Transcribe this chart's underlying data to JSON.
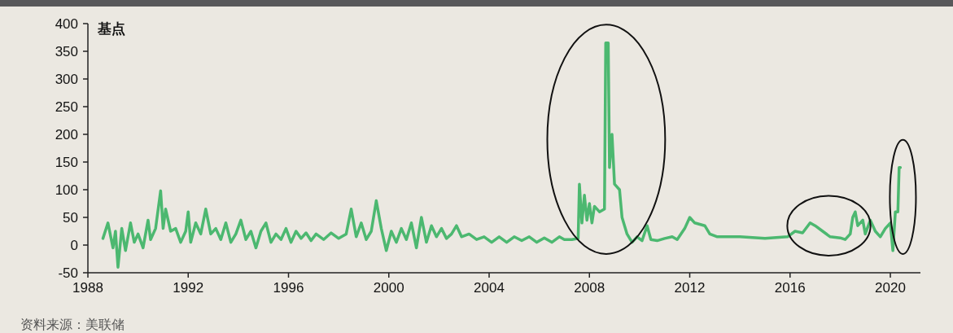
{
  "chart_data": {
    "type": "line",
    "ylabel": "基点",
    "annotations": [
      "资料来源：美联储"
    ],
    "xlim": [
      1988,
      2021.2
    ],
    "xticks": [
      1988,
      1992,
      1996,
      2000,
      2004,
      2008,
      2012,
      2016,
      2020
    ],
    "ylim": [
      -50,
      400
    ],
    "yticks": [
      -50,
      0,
      50,
      100,
      150,
      200,
      250,
      300,
      350,
      400
    ],
    "grid": false,
    "line_style": "solid",
    "marker": "none",
    "series": [
      {
        "color": "#4cb870",
        "x": [
          1988.6,
          1988.8,
          1989.0,
          1989.1,
          1989.2,
          1989.35,
          1989.5,
          1989.7,
          1989.85,
          1990.0,
          1990.2,
          1990.4,
          1990.5,
          1990.7,
          1990.9,
          1991.0,
          1991.1,
          1991.3,
          1991.5,
          1991.7,
          1991.9,
          1992.0,
          1992.1,
          1992.3,
          1992.5,
          1992.7,
          1992.9,
          1993.1,
          1993.3,
          1993.5,
          1993.7,
          1993.9,
          1994.1,
          1994.3,
          1994.5,
          1994.7,
          1994.9,
          1995.1,
          1995.3,
          1995.5,
          1995.7,
          1995.9,
          1996.1,
          1996.3,
          1996.5,
          1996.7,
          1996.9,
          1997.1,
          1997.4,
          1997.7,
          1998.0,
          1998.3,
          1998.5,
          1998.7,
          1998.9,
          1999.1,
          1999.3,
          1999.5,
          1999.7,
          1999.9,
          2000.1,
          2000.3,
          2000.5,
          2000.7,
          2000.9,
          2001.1,
          2001.3,
          2001.5,
          2001.7,
          2001.9,
          2002.1,
          2002.3,
          2002.5,
          2002.7,
          2002.9,
          2003.2,
          2003.5,
          2003.8,
          2004.1,
          2004.4,
          2004.7,
          2005.0,
          2005.3,
          2005.6,
          2005.9,
          2006.2,
          2006.5,
          2006.8,
          2007.0,
          2007.3,
          2007.55,
          2007.6,
          2007.7,
          2007.8,
          2007.9,
          2008.0,
          2008.1,
          2008.2,
          2008.4,
          2008.6,
          2008.65,
          2008.75,
          2008.8,
          2008.9,
          2009.0,
          2009.2,
          2009.3,
          2009.5,
          2009.7,
          2009.9,
          2010.1,
          2010.3,
          2010.45,
          2010.7,
          2011.0,
          2011.3,
          2011.5,
          2011.8,
          2012.0,
          2012.2,
          2012.6,
          2012.8,
          2013.1,
          2014.0,
          2015.0,
          2015.9,
          2016.2,
          2016.5,
          2016.8,
          2017.0,
          2017.3,
          2017.6,
          2018.0,
          2018.2,
          2018.4,
          2018.5,
          2018.6,
          2018.7,
          2018.9,
          2019.0,
          2019.2,
          2019.4,
          2019.6,
          2019.8,
          2020.0,
          2020.1,
          2020.2,
          2020.3,
          2020.35,
          2020.4
        ],
        "values": [
          12,
          40,
          -5,
          25,
          -40,
          30,
          -10,
          40,
          5,
          20,
          -5,
          45,
          10,
          30,
          98,
          30,
          65,
          25,
          30,
          5,
          25,
          60,
          5,
          40,
          20,
          65,
          20,
          30,
          10,
          40,
          5,
          20,
          45,
          10,
          25,
          -5,
          25,
          40,
          5,
          20,
          10,
          30,
          5,
          25,
          12,
          22,
          8,
          20,
          10,
          22,
          12,
          20,
          65,
          15,
          40,
          10,
          25,
          80,
          30,
          -10,
          25,
          5,
          30,
          10,
          40,
          -5,
          50,
          5,
          35,
          15,
          30,
          12,
          20,
          35,
          15,
          20,
          10,
          15,
          5,
          15,
          5,
          15,
          8,
          15,
          5,
          13,
          5,
          15,
          10,
          10,
          12,
          110,
          40,
          90,
          45,
          75,
          40,
          70,
          60,
          65,
          365,
          365,
          140,
          200,
          110,
          100,
          50,
          20,
          5,
          15,
          8,
          35,
          10,
          8,
          12,
          15,
          10,
          30,
          50,
          40,
          35,
          20,
          15,
          15,
          12,
          15,
          25,
          22,
          40,
          35,
          25,
          15,
          13,
          10,
          20,
          50,
          60,
          35,
          45,
          20,
          45,
          25,
          15,
          30,
          40,
          -10,
          60,
          60,
          140,
          140
        ]
      }
    ]
  }
}
